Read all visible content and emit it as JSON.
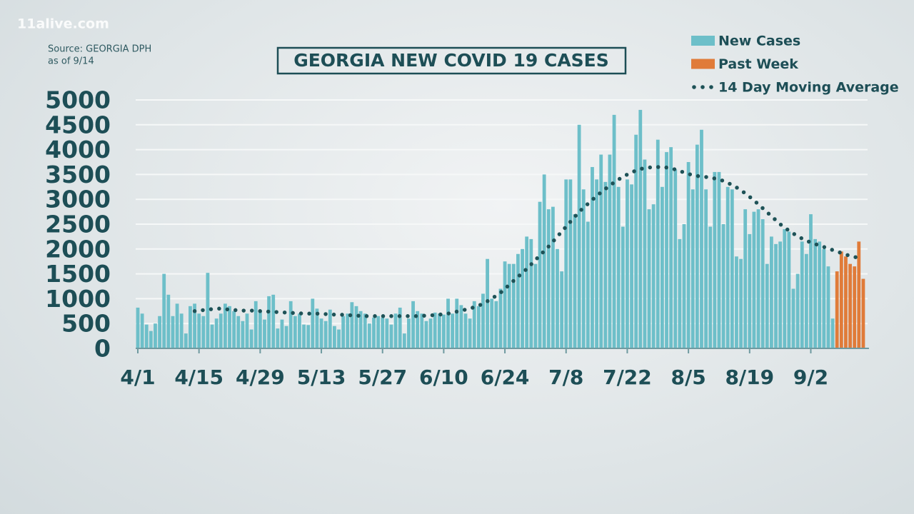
{
  "watermark": "11alive.com",
  "chart_data": {
    "type": "bar",
    "title": "GEORGIA NEW COVID 19 CASES",
    "source": "Source: GEORGIA DPH",
    "as_of": "as of 9/14",
    "categories": [
      "4/1",
      null,
      null,
      null,
      null,
      null,
      null,
      null,
      null,
      null,
      null,
      null,
      null,
      null,
      "4/15",
      null,
      null,
      null,
      null,
      null,
      null,
      null,
      null,
      null,
      null,
      null,
      null,
      null,
      "4/29",
      null,
      null,
      null,
      null,
      null,
      null,
      null,
      null,
      null,
      null,
      null,
      null,
      null,
      "5/13",
      null,
      null,
      null,
      null,
      null,
      null,
      null,
      null,
      null,
      null,
      null,
      null,
      null,
      "5/27",
      null,
      null,
      null,
      null,
      null,
      null,
      null,
      null,
      null,
      null,
      null,
      null,
      null,
      "6/10",
      null,
      null,
      null,
      null,
      null,
      null,
      null,
      null,
      null,
      null,
      null,
      null,
      null,
      "6/24",
      null,
      null,
      null,
      null,
      null,
      null,
      null,
      null,
      null,
      null,
      null,
      null,
      null,
      "7/8",
      null,
      null,
      null,
      null,
      null,
      null,
      null,
      null,
      null,
      null,
      null,
      null,
      null,
      "7/22",
      null,
      null,
      null,
      null,
      null,
      null,
      null,
      null,
      null,
      null,
      null,
      null,
      null,
      "8/5",
      null,
      null,
      null,
      null,
      null,
      null,
      null,
      null,
      null,
      null,
      null,
      null,
      null,
      "8/19",
      null,
      null,
      null,
      null,
      null,
      null,
      null,
      null,
      null,
      null,
      null,
      null,
      null,
      "9/2",
      null,
      null,
      null,
      null,
      null,
      null,
      null,
      null,
      null,
      null,
      null,
      null
    ],
    "ylim": [
      0,
      5000
    ],
    "yticks": [
      0,
      500,
      1000,
      1500,
      2000,
      2500,
      3000,
      3500,
      4000,
      4500,
      5000
    ],
    "grid": true,
    "legend": "top-right",
    "series": [
      {
        "name": "New Cases",
        "type": "bar",
        "color": "#6dbfc9",
        "values": [
          820,
          700,
          480,
          350,
          500,
          650,
          1500,
          1080,
          650,
          900,
          700,
          300,
          850,
          900,
          700,
          650,
          1520,
          480,
          600,
          700,
          900,
          850,
          750,
          650,
          550,
          700,
          380,
          950,
          750,
          580,
          1050,
          1080,
          400,
          580,
          450,
          950,
          650,
          700,
          480,
          470,
          1000,
          800,
          600,
          550,
          780,
          450,
          380,
          650,
          700,
          930,
          850,
          750,
          700,
          500,
          620,
          650,
          620,
          600,
          480,
          700,
          820,
          300,
          600,
          950,
          750,
          700,
          550,
          600,
          720,
          700,
          680,
          1000,
          700,
          1000,
          870,
          700,
          600,
          950,
          850,
          1100,
          1800,
          1000,
          950,
          1200,
          1750,
          1700,
          1700,
          1900,
          2000,
          2250,
          2200,
          1700,
          2950,
          3500,
          2800,
          2850,
          2000,
          1550,
          3400,
          3400,
          2700,
          4500,
          3200,
          2550,
          3650,
          3400,
          3900,
          3350,
          3900,
          4700,
          3250,
          2450,
          3400,
          3300,
          4300,
          4800,
          3800,
          2800,
          2900,
          4200,
          3250,
          3950,
          4050,
          3600,
          2200,
          2500,
          3750,
          3200,
          4100,
          4400,
          3200,
          2450,
          3550,
          3550,
          2500,
          3250,
          3200,
          1850,
          1800,
          2800,
          2300,
          2750,
          2800,
          2600,
          1700,
          2250,
          2100,
          2150,
          2400,
          2350,
          1200,
          1500,
          2150,
          1900,
          2700,
          2200,
          2150,
          2000,
          1650,
          600,
          null,
          null,
          null,
          null,
          null,
          null,
          null
        ]
      },
      {
        "name": "Past Week",
        "type": "bar",
        "color": "#e07b39",
        "values": [
          null,
          null,
          null,
          null,
          null,
          null,
          null,
          null,
          null,
          null,
          null,
          null,
          null,
          null,
          null,
          null,
          null,
          null,
          null,
          null,
          null,
          null,
          null,
          null,
          null,
          null,
          null,
          null,
          null,
          null,
          null,
          null,
          null,
          null,
          null,
          null,
          null,
          null,
          null,
          null,
          null,
          null,
          null,
          null,
          null,
          null,
          null,
          null,
          null,
          null,
          null,
          null,
          null,
          null,
          null,
          null,
          null,
          null,
          null,
          null,
          null,
          null,
          null,
          null,
          null,
          null,
          null,
          null,
          null,
          null,
          null,
          null,
          null,
          null,
          null,
          null,
          null,
          null,
          null,
          null,
          null,
          null,
          null,
          null,
          null,
          null,
          null,
          null,
          null,
          null,
          null,
          null,
          null,
          null,
          null,
          null,
          null,
          null,
          null,
          null,
          null,
          null,
          null,
          null,
          null,
          null,
          null,
          null,
          null,
          null,
          null,
          null,
          null,
          null,
          null,
          null,
          null,
          null,
          null,
          null,
          null,
          null,
          null,
          null,
          null,
          null,
          null,
          null,
          null,
          null,
          null,
          null,
          null,
          null,
          null,
          null,
          null,
          null,
          null,
          null,
          null,
          null,
          null,
          null,
          null,
          null,
          null,
          null,
          null,
          null,
          null,
          null,
          null,
          null,
          null,
          null,
          null,
          null,
          null,
          null,
          1550,
          1950,
          1850,
          1700,
          1650,
          2150,
          1400
        ]
      },
      {
        "name": "14 Day Moving Average",
        "type": "line",
        "color": "#1e5257",
        "values": [
          null,
          null,
          null,
          null,
          null,
          null,
          null,
          null,
          null,
          null,
          null,
          null,
          null,
          750,
          760,
          770,
          780,
          790,
          800,
          800,
          790,
          780,
          770,
          770,
          760,
          760,
          760,
          760,
          750,
          745,
          740,
          735,
          730,
          725,
          720,
          715,
          710,
          705,
          700,
          700,
          700,
          700,
          695,
          690,
          685,
          680,
          680,
          675,
          670,
          665,
          660,
          655,
          650,
          650,
          650,
          650,
          650,
          650,
          650,
          650,
          650,
          650,
          650,
          650,
          650,
          655,
          660,
          665,
          670,
          680,
          690,
          700,
          720,
          740,
          760,
          780,
          800,
          830,
          860,
          900,
          950,
          1000,
          1060,
          1120,
          1200,
          1280,
          1360,
          1440,
          1520,
          1600,
          1690,
          1780,
          1870,
          1960,
          2050,
          2150,
          2250,
          2350,
          2450,
          2550,
          2650,
          2750,
          2830,
          2910,
          2990,
          3070,
          3140,
          3210,
          3280,
          3340,
          3400,
          3450,
          3500,
          3540,
          3580,
          3610,
          3630,
          3640,
          3650,
          3650,
          3650,
          3640,
          3620,
          3600,
          3570,
          3540,
          3510,
          3490,
          3470,
          3460,
          3450,
          3440,
          3420,
          3400,
          3370,
          3330,
          3290,
          3240,
          3180,
          3120,
          3050,
          2980,
          2900,
          2820,
          2740,
          2660,
          2580,
          2500,
          2430,
          2370,
          2310,
          2260,
          2210,
          2170,
          2130,
          2100,
          2070,
          2040,
          2010,
          1980,
          1950,
          1920,
          1890,
          1860,
          1840,
          1820,
          1800
        ]
      }
    ]
  }
}
